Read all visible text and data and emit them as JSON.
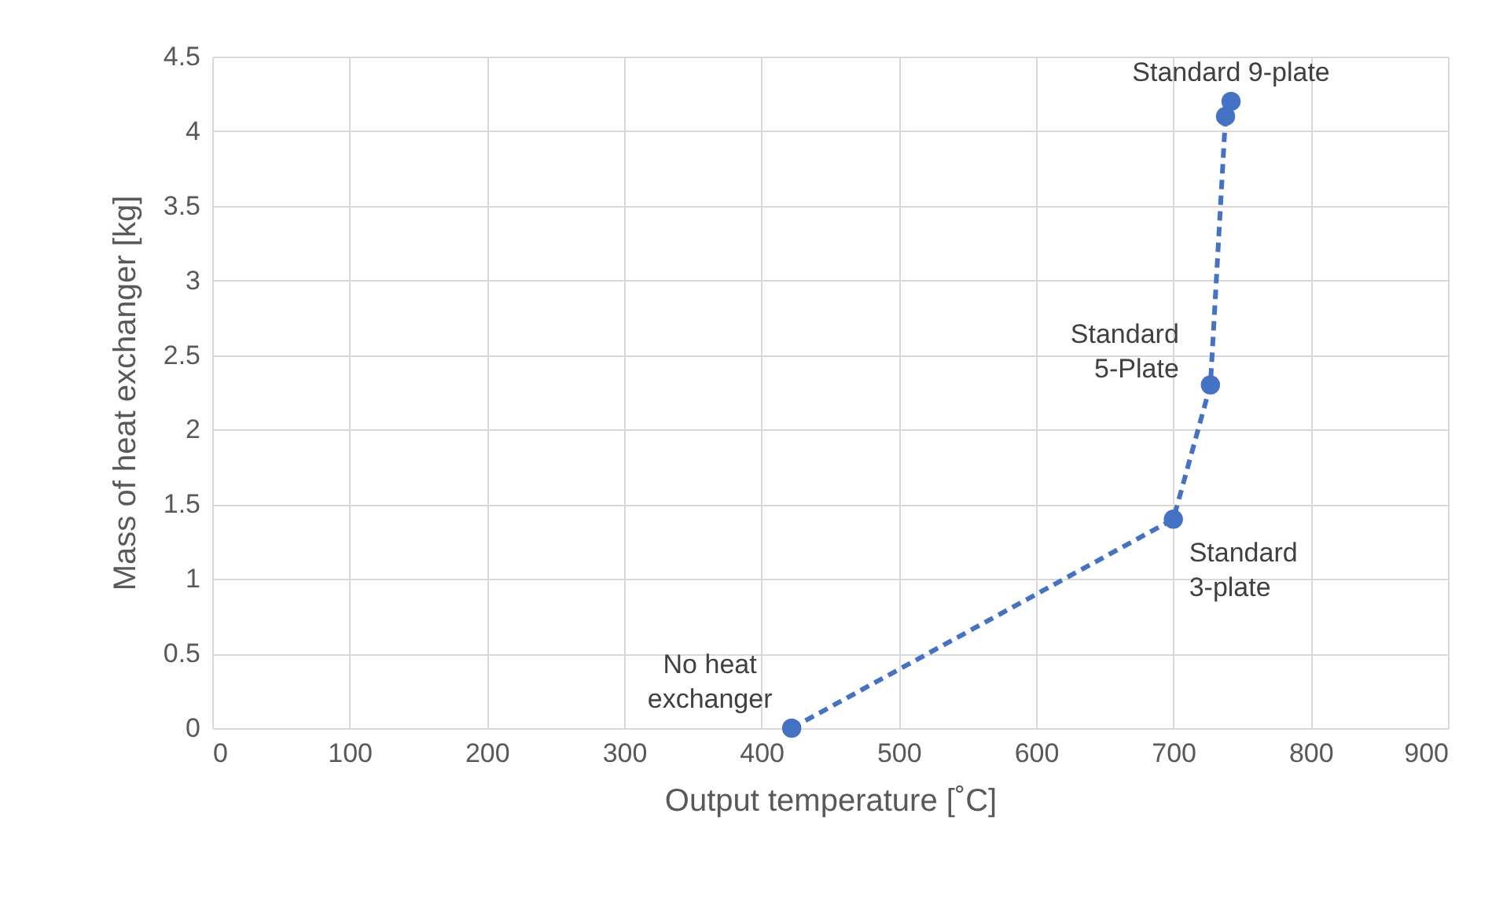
{
  "chart_data": {
    "type": "line",
    "xlabel": "Output temperature [˚C]",
    "ylabel": "Mass of heat exchanger [kg]",
    "x": [
      422,
      700,
      727,
      738,
      742
    ],
    "series": [
      {
        "color": "#4472c4",
        "values": [
          0,
          1.4,
          2.3,
          4.1,
          4.2
        ]
      }
    ],
    "xlim": [
      0,
      900
    ],
    "xticks": [
      0,
      100,
      200,
      300,
      400,
      500,
      600,
      700,
      800,
      900
    ],
    "ylim": [
      0,
      4.5
    ],
    "yticks": [
      0,
      0.5,
      1,
      1.5,
      2,
      2.5,
      3,
      3.5,
      4,
      4.5
    ],
    "grid": true,
    "marker": "circle",
    "line_style": "dashed",
    "annotations": [
      {
        "text": "No heat\nexchanger",
        "x": 422,
        "y": 0
      },
      {
        "text": "Standard\n3-plate",
        "x": 700,
        "y": 1.4
      },
      {
        "text": "Standard\n5-Plate",
        "x": 727,
        "y": 2.3
      },
      {
        "text": "Standard 9-plate",
        "x": 742,
        "y": 4.2
      }
    ]
  }
}
